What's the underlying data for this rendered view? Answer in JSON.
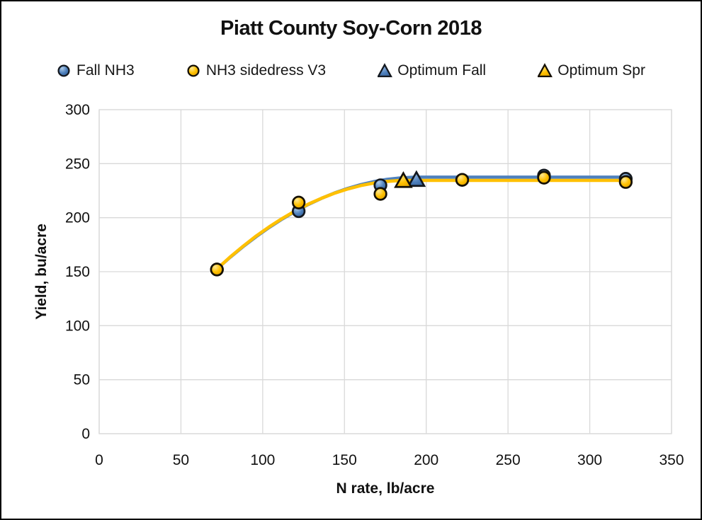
{
  "title": "Piatt County Soy-Corn 2018",
  "axes": {
    "x_label": "N rate, lb/acre",
    "y_label": "Yield, bu/acre"
  },
  "colors": {
    "background": "#FFFFFF",
    "frame_border": "#000000",
    "gridline": "#D9D9D9",
    "text": "#111111",
    "blue": "#4F81BD",
    "yellow": "#FFC000"
  },
  "chart_data": {
    "type": "scatter",
    "title": "Piatt County Soy-Corn 2018",
    "xlabel": "N rate, lb/acre",
    "ylabel": "Yield, bu/acre",
    "xlim": [
      0,
      350
    ],
    "ylim": [
      0,
      300
    ],
    "x_ticks": [
      0,
      50,
      100,
      150,
      200,
      250,
      300,
      350
    ],
    "y_ticks": [
      0,
      50,
      100,
      150,
      200,
      250,
      300
    ],
    "grid": true,
    "legend_position": "top",
    "series": [
      {
        "name": "Fall NH3",
        "marker": "circle",
        "color": "#4F81BD",
        "fill_light": "#AECBE8",
        "fill_dark": "#2F5D96",
        "outline": "#13181F",
        "line": true,
        "points": [
          [
            72,
            152
          ],
          [
            122,
            206
          ],
          [
            172,
            230
          ],
          [
            222,
            235
          ],
          [
            272,
            239
          ],
          [
            322,
            236
          ]
        ],
        "trend": [
          [
            72,
            152.5
          ],
          [
            80,
            163.2
          ],
          [
            88,
            173.2
          ],
          [
            96,
            182.4
          ],
          [
            104,
            191.0
          ],
          [
            112,
            198.8
          ],
          [
            120,
            205.9
          ],
          [
            128,
            212.3
          ],
          [
            136,
            217.9
          ],
          [
            144,
            222.9
          ],
          [
            152,
            227.1
          ],
          [
            160,
            230.6
          ],
          [
            168,
            233.4
          ],
          [
            176,
            235.5
          ],
          [
            184,
            236.8
          ],
          [
            192,
            237.4
          ],
          [
            195,
            237.5
          ],
          [
            322,
            237.5
          ]
        ]
      },
      {
        "name": "NH3 sidedress V3",
        "marker": "circle",
        "color": "#FFC000",
        "fill_light": "#FFE893",
        "fill_dark": "#DD9F00",
        "outline": "#151004",
        "line": true,
        "points": [
          [
            72,
            152
          ],
          [
            122,
            214
          ],
          [
            172,
            222
          ],
          [
            222,
            235
          ],
          [
            272,
            237
          ],
          [
            322,
            233
          ]
        ],
        "trend": [
          [
            72,
            152.5
          ],
          [
            80,
            163.5
          ],
          [
            88,
            173.6
          ],
          [
            96,
            183.0
          ],
          [
            104,
            191.5
          ],
          [
            112,
            199.3
          ],
          [
            120,
            206.3
          ],
          [
            128,
            212.6
          ],
          [
            136,
            218.0
          ],
          [
            144,
            222.7
          ],
          [
            152,
            226.6
          ],
          [
            160,
            229.7
          ],
          [
            168,
            232.1
          ],
          [
            176,
            233.6
          ],
          [
            184,
            234.4
          ],
          [
            188,
            234.5
          ],
          [
            322,
            234.5
          ]
        ]
      },
      {
        "name": "Optimum Fall",
        "marker": "triangle",
        "color": "#4F81BD",
        "fill_light": "#8FB2DA",
        "fill_dark": "#3A66A0",
        "outline": "#13181F",
        "line": false,
        "points": [
          [
            194,
            235
          ]
        ]
      },
      {
        "name": "Optimum Spr",
        "marker": "triangle",
        "color": "#FFC000",
        "fill_light": "#FFDD6B",
        "fill_dark": "#E5A800",
        "outline": "#151004",
        "line": false,
        "points": [
          [
            186,
            234
          ]
        ]
      }
    ]
  }
}
